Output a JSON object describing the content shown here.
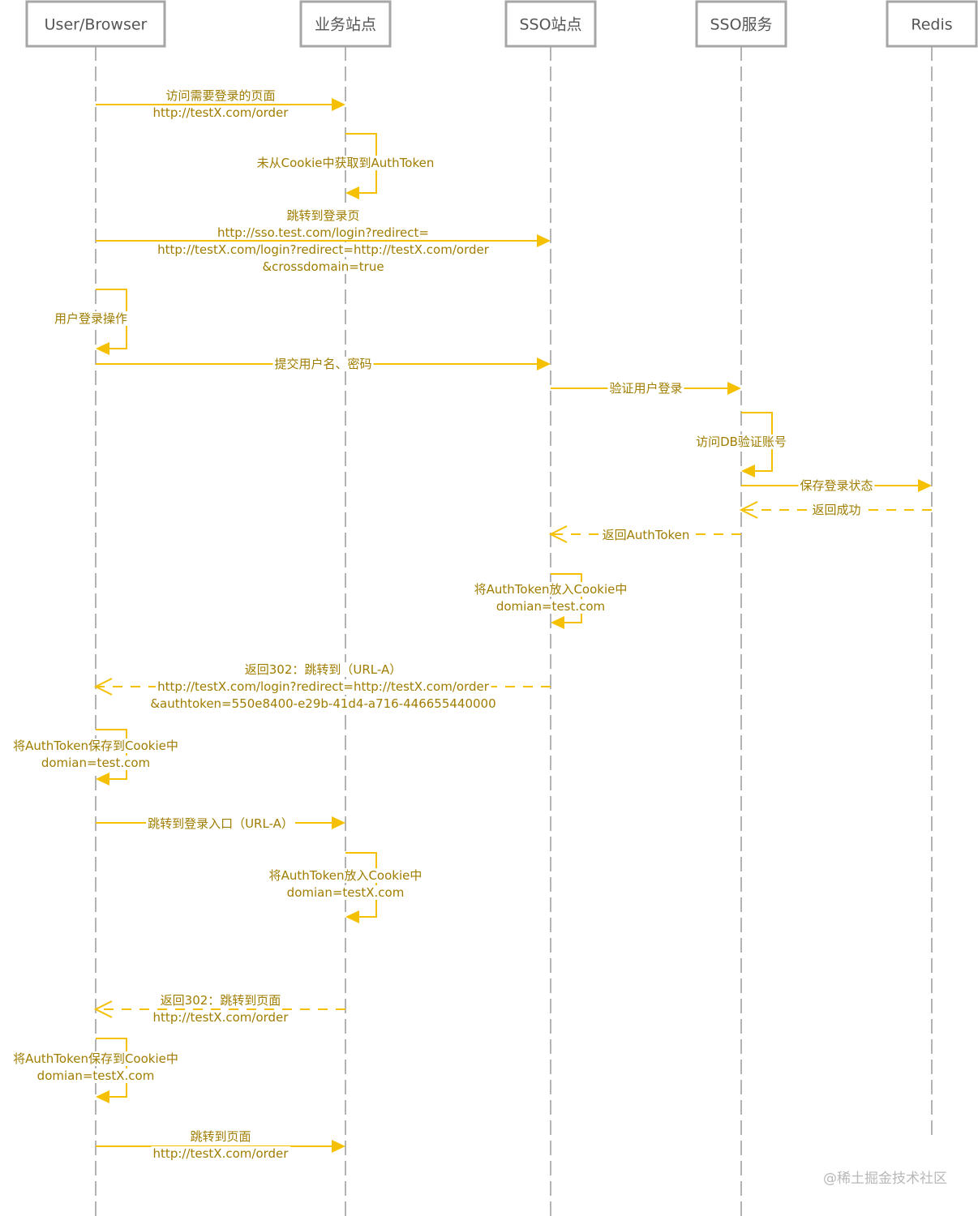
{
  "diagram": {
    "type": "sequence",
    "colors": {
      "message": "#f5c000",
      "text": "#a07d00",
      "lifeline": "#b3b3b3",
      "box_border": "#a6a6a6",
      "box_text": "#555555"
    },
    "participants": [
      {
        "id": "user",
        "label": "User/Browser"
      },
      {
        "id": "biz",
        "label": "业务站点"
      },
      {
        "id": "ssosite",
        "label": "SSO站点"
      },
      {
        "id": "ssosvc",
        "label": "SSO服务"
      },
      {
        "id": "redis",
        "label": "Redis"
      }
    ],
    "messages": [
      {
        "from": "user",
        "to": "biz",
        "style": "solid",
        "lines": [
          "访问需要登录的页面",
          "http://testX.com/order"
        ]
      },
      {
        "from": "biz",
        "to": "biz",
        "style": "self",
        "lines": [
          "未从Cookie中获取到AuthToken"
        ]
      },
      {
        "from": "user",
        "to": "ssosite",
        "style": "solid",
        "lines": [
          "跳转到登录页",
          "http://sso.test.com/login?redirect=",
          "http://testX.com/login?redirect=http://testX.com/order",
          "&crossdomain=true"
        ]
      },
      {
        "from": "user",
        "to": "user",
        "style": "self",
        "lines": [
          "用户登录操作"
        ]
      },
      {
        "from": "user",
        "to": "ssosite",
        "style": "solid",
        "lines": [
          "提交用户名、密码"
        ]
      },
      {
        "from": "ssosite",
        "to": "ssosvc",
        "style": "solid",
        "lines": [
          "验证用户登录"
        ]
      },
      {
        "from": "ssosvc",
        "to": "ssosvc",
        "style": "self",
        "lines": [
          "访问DB验证账号"
        ]
      },
      {
        "from": "ssosvc",
        "to": "redis",
        "style": "solid",
        "lines": [
          "保存登录状态"
        ]
      },
      {
        "from": "redis",
        "to": "ssosvc",
        "style": "dashed",
        "lines": [
          "返回成功"
        ]
      },
      {
        "from": "ssosvc",
        "to": "ssosite",
        "style": "dashed",
        "lines": [
          "返回AuthToken"
        ]
      },
      {
        "from": "ssosite",
        "to": "ssosite",
        "style": "self",
        "lines": [
          "将AuthToken放入Cookie中",
          "domian=test.com"
        ]
      },
      {
        "from": "ssosite",
        "to": "user",
        "style": "dashed",
        "lines": [
          "返回302：跳转到（URL-A）",
          "http://testX.com/login?redirect=http://testX.com/order",
          "&authtoken=550e8400-e29b-41d4-a716-446655440000"
        ]
      },
      {
        "from": "user",
        "to": "user",
        "style": "self",
        "lines": [
          "将AuthToken保存到Cookie中",
          "domian=test.com"
        ]
      },
      {
        "from": "user",
        "to": "biz",
        "style": "solid",
        "lines": [
          "跳转到登录入口（URL-A）"
        ]
      },
      {
        "from": "biz",
        "to": "biz",
        "style": "self",
        "lines": [
          "将AuthToken放入Cookie中",
          "domian=testX.com"
        ]
      },
      {
        "from": "biz",
        "to": "user",
        "style": "dashed",
        "lines": [
          "返回302：跳转到页面",
          "http://testX.com/order"
        ]
      },
      {
        "from": "user",
        "to": "user",
        "style": "self",
        "lines": [
          "将AuthToken保存到Cookie中",
          "domian=testX.com"
        ]
      },
      {
        "from": "user",
        "to": "biz",
        "style": "solid",
        "lines": [
          "跳转到页面",
          "http://testX.com/order"
        ]
      }
    ]
  },
  "watermark": "@稀土掘金技术社区"
}
